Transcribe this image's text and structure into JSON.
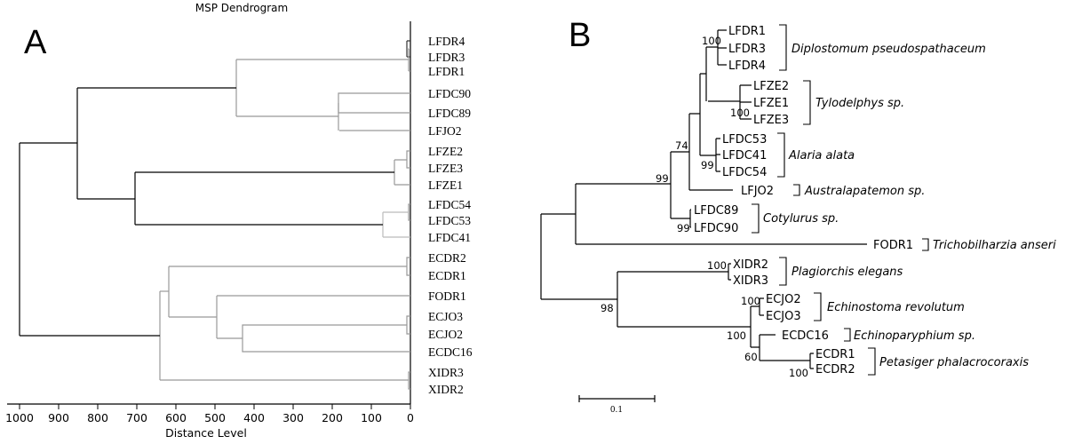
{
  "panel_a": {
    "label": "A",
    "title": "MSP Dendrogram",
    "xlabel": "Distance Level",
    "ticks": [
      1000,
      900,
      800,
      700,
      600,
      500,
      400,
      300,
      200,
      100,
      0
    ],
    "leaves": [
      "LFDR4",
      "LFDR3",
      "LFDR1",
      "LFDC90",
      "LFDC89",
      "LFJO2",
      "LFZE2",
      "LFZE3",
      "LFZE1",
      "LFDC54",
      "LFDC53",
      "LFDC41",
      "ECDR2",
      "ECDR1",
      "FODR1",
      "ECJO3",
      "ECJO2",
      "ECDC16",
      "XIDR3",
      "XIDR2"
    ]
  },
  "panel_b": {
    "label": "B",
    "scale_label": "0.1",
    "clades": {
      "diplostomum": "Diplostomum pseudospathaceum",
      "tylodelphys": "Tylodelphys sp.",
      "alaria": "Alaria alata",
      "australapatemon": "Australapatemon sp.",
      "cotylurus": "Cotylurus sp.",
      "trichobilharzia": "Trichobilharzia anseri",
      "plagiorchis": "Plagiorchis elegans",
      "echinostoma": "Echinostoma revolutum",
      "echinoparyphium": "Echinoparyphium sp.",
      "petasiger": "Petasiger phalacrocoraxis"
    },
    "leaves": {
      "LFDR1": "LFDR1",
      "LFDR3": "LFDR3",
      "LFDR4": "LFDR4",
      "LFZE2": "LFZE2",
      "LFZE1": "LFZE1",
      "LFZE3": "LFZE3",
      "LFDC53": "LFDC53",
      "LFDC41": "LFDC41",
      "LFDC54": "LFDC54",
      "LFJO2": "LFJO2",
      "LFDC89": "LFDC89",
      "LFDC90": "LFDC90",
      "FODR1": "FODR1",
      "XIDR2": "XIDR2",
      "XIDR3": "XIDR3",
      "ECJO2": "ECJO2",
      "ECJO3": "ECJO3",
      "ECDC16": "ECDC16",
      "ECDR1": "ECDR1",
      "ECDR2": "ECDR2"
    },
    "bootstraps": {
      "diplo": "100",
      "tylo": "100",
      "alaria": "99",
      "n74": "74",
      "n99top": "99",
      "cotyl": "99",
      "plag": "100",
      "n98": "98",
      "echino": "100",
      "echinoGroup": "100",
      "petasiger": "100",
      "n60": "60"
    }
  }
}
